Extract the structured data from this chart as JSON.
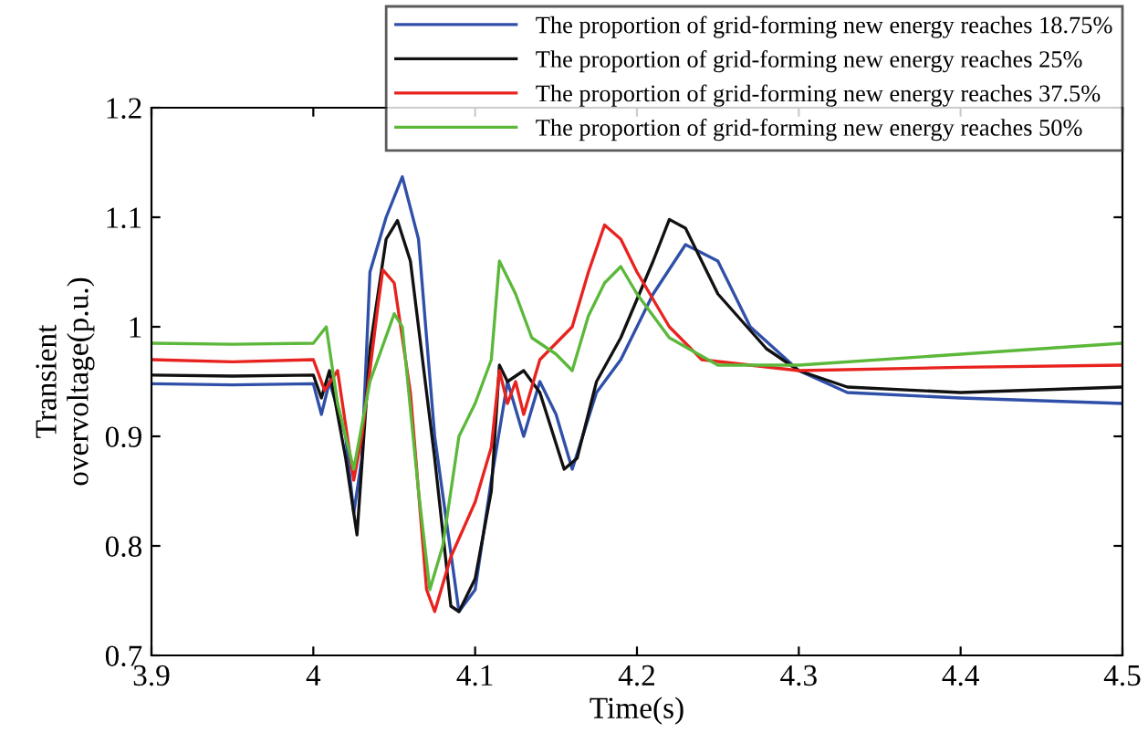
{
  "chart_data": {
    "type": "line",
    "xlabel": "Time(s)",
    "ylabel": "Transient\novervoltage(p.u.)",
    "xlim": [
      3.9,
      4.5
    ],
    "ylim": [
      0.7,
      1.2
    ],
    "xticks": [
      3.9,
      4,
      4.1,
      4.2,
      4.3,
      4.4,
      4.5
    ],
    "yticks": [
      0.7,
      0.8,
      0.9,
      1,
      1.1,
      1.2
    ],
    "grid": false,
    "legend": "top right",
    "marker": "none",
    "line_style": "solid",
    "series": [
      {
        "name": "The proportion of grid-forming new energy reaches 18.75%",
        "color": "#2f4fa8",
        "x": [
          3.9,
          3.95,
          4.0,
          4.005,
          4.01,
          4.02,
          4.025,
          4.03,
          4.035,
          4.045,
          4.055,
          4.065,
          4.075,
          4.09,
          4.1,
          4.11,
          4.12,
          4.13,
          4.14,
          4.15,
          4.16,
          4.175,
          4.19,
          4.21,
          4.23,
          4.25,
          4.27,
          4.3,
          4.33,
          4.4,
          4.5
        ],
        "values": [
          0.948,
          0.947,
          0.948,
          0.92,
          0.95,
          0.9,
          0.83,
          0.88,
          1.05,
          1.1,
          1.137,
          1.08,
          0.9,
          0.74,
          0.76,
          0.86,
          0.95,
          0.9,
          0.95,
          0.92,
          0.87,
          0.94,
          0.97,
          1.03,
          1.075,
          1.06,
          1.0,
          0.96,
          0.94,
          0.935,
          0.93
        ]
      },
      {
        "name": "The proportion of grid-forming new energy reaches 25%",
        "color": "#111111",
        "x": [
          3.9,
          3.95,
          4.0,
          4.005,
          4.01,
          4.02,
          4.027,
          4.035,
          4.045,
          4.052,
          4.06,
          4.075,
          4.085,
          4.09,
          4.1,
          4.11,
          4.115,
          4.12,
          4.13,
          4.14,
          4.155,
          4.163,
          4.175,
          4.19,
          4.21,
          4.22,
          4.23,
          4.25,
          4.28,
          4.3,
          4.33,
          4.4,
          4.5
        ],
        "values": [
          0.956,
          0.955,
          0.956,
          0.935,
          0.96,
          0.88,
          0.81,
          0.98,
          1.08,
          1.097,
          1.06,
          0.88,
          0.745,
          0.74,
          0.77,
          0.85,
          0.965,
          0.95,
          0.96,
          0.94,
          0.87,
          0.88,
          0.95,
          0.99,
          1.06,
          1.098,
          1.09,
          1.03,
          0.98,
          0.96,
          0.945,
          0.94,
          0.945
        ]
      },
      {
        "name": "The proportion of grid-forming new energy reaches 37.5%",
        "color": "#e8231f",
        "x": [
          3.9,
          3.95,
          4.0,
          4.007,
          4.015,
          4.025,
          4.03,
          4.04,
          4.043,
          4.05,
          4.06,
          4.07,
          4.075,
          4.085,
          4.1,
          4.11,
          4.115,
          4.12,
          4.125,
          4.13,
          4.14,
          4.16,
          4.17,
          4.18,
          4.19,
          4.2,
          4.22,
          4.24,
          4.3,
          4.4,
          4.5
        ],
        "values": [
          0.97,
          0.968,
          0.97,
          0.942,
          0.96,
          0.86,
          0.9,
          1.02,
          1.052,
          1.04,
          0.94,
          0.76,
          0.74,
          0.79,
          0.84,
          0.89,
          0.96,
          0.93,
          0.95,
          0.92,
          0.97,
          1.0,
          1.05,
          1.093,
          1.08,
          1.05,
          1.0,
          0.97,
          0.96,
          0.963,
          0.965
        ]
      },
      {
        "name": "The proportion of grid-forming new energy reaches 50%",
        "color": "#5cb83a",
        "x": [
          3.9,
          3.95,
          4.0,
          4.008,
          4.015,
          4.025,
          4.035,
          4.05,
          4.055,
          4.065,
          4.072,
          4.08,
          4.09,
          4.1,
          4.11,
          4.115,
          4.125,
          4.135,
          4.15,
          4.16,
          4.17,
          4.18,
          4.19,
          4.2,
          4.22,
          4.25,
          4.3,
          4.4,
          4.5
        ],
        "values": [
          0.985,
          0.984,
          0.985,
          1.0,
          0.93,
          0.87,
          0.95,
          1.012,
          1.0,
          0.85,
          0.76,
          0.8,
          0.9,
          0.93,
          0.97,
          1.06,
          1.03,
          0.99,
          0.975,
          0.96,
          1.01,
          1.04,
          1.055,
          1.03,
          0.99,
          0.965,
          0.965,
          0.975,
          0.985
        ]
      }
    ]
  }
}
